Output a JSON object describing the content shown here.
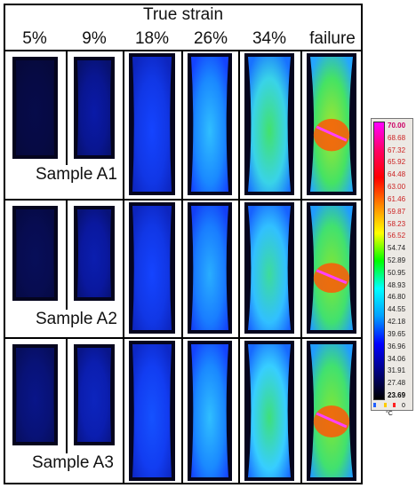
{
  "header": {
    "title": "True strain"
  },
  "columns": [
    "5%",
    "9%",
    "18%",
    "26%",
    "34%",
    "failure"
  ],
  "samples": [
    "Sample A1",
    "Sample A2",
    "Sample A3"
  ],
  "thermograms": [
    [
      {
        "level": 0.02
      },
      {
        "level": 0.08
      },
      {
        "level": 0.2
      },
      {
        "level": 0.36
      },
      {
        "level": 0.48
      },
      {
        "level": 0.6,
        "failure": true
      }
    ],
    [
      {
        "level": 0.03
      },
      {
        "level": 0.09
      },
      {
        "level": 0.2
      },
      {
        "level": 0.34
      },
      {
        "level": 0.44
      },
      {
        "level": 0.58,
        "failure": true
      }
    ],
    [
      {
        "level": 0.06
      },
      {
        "level": 0.11
      },
      {
        "level": 0.22
      },
      {
        "level": 0.36
      },
      {
        "level": 0.46
      },
      {
        "level": 0.58,
        "failure": true
      }
    ]
  ],
  "color_scale": {
    "unit": "°C",
    "max": "70.00",
    "min": "23.69",
    "ticks": [
      "70.00",
      "68.68",
      "67.32",
      "65.92",
      "64.48",
      "63.00",
      "61.46",
      "59.87",
      "58.23",
      "56.52",
      "54.74",
      "52.89",
      "50.95",
      "48.93",
      "46.80",
      "44.55",
      "42.18",
      "39.65",
      "36.96",
      "34.06",
      "31.91",
      "27.48",
      "23.69"
    ],
    "footer_value": "0",
    "colors": [
      "#ff00ff",
      "#ff0066",
      "#ff0000",
      "#ff8800",
      "#ffff00",
      "#00ff00",
      "#00ffff",
      "#00a0ff",
      "#0000ff",
      "#000080",
      "#000000"
    ]
  }
}
